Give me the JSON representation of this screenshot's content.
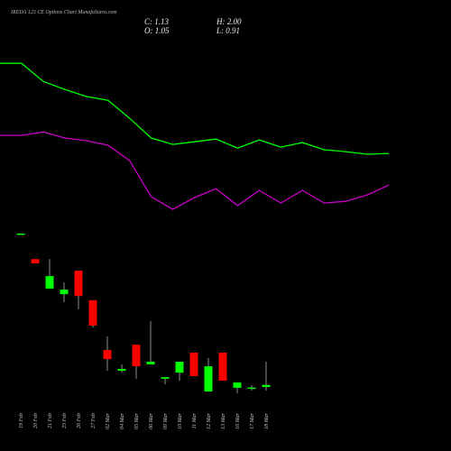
{
  "chart_data": [
    {
      "type": "candlestick",
      "title": "IREDA 123 CE Options Chart MunafaSutra.com",
      "ohlc_labels": [
        "C: 1.13",
        "H: 2.00",
        "O: 1.05",
        "L: 0.91"
      ],
      "categories": [
        "19 Feb",
        "20 Feb",
        "21 Feb",
        "25 Feb",
        "26 Feb",
        "27 Feb",
        "02 Mar",
        "04 Mar",
        "05 Mar",
        "06 Mar",
        "09 Mar",
        "10 Mar",
        "11 Mar",
        "12 Mar",
        "13 Mar",
        "16 Mar",
        "17 Mar",
        "18 Mar"
      ],
      "open": [
        6.8,
        5.86,
        4.75,
        4.54,
        5.42,
        4.31,
        2.44,
        1.66,
        2.64,
        1.9,
        1.36,
        1.59,
        2.34,
        0.88,
        2.34,
        1.02,
        1.02,
        1.05
      ],
      "high": [
        6.82,
        5.86,
        5.86,
        4.98,
        5.42,
        4.31,
        2.95,
        1.9,
        2.64,
        3.53,
        1.42,
        2.0,
        2.34,
        2.14,
        2.34,
        1.22,
        1.12,
        2.0
      ],
      "low": [
        6.8,
        5.7,
        4.75,
        4.24,
        3.97,
        3.29,
        1.66,
        1.59,
        1.36,
        1.9,
        1.15,
        1.29,
        1.46,
        0.88,
        1.29,
        0.81,
        0.92,
        0.91
      ],
      "close": [
        6.82,
        5.7,
        5.22,
        4.71,
        4.47,
        3.36,
        2.1,
        1.73,
        1.83,
        2.0,
        1.42,
        2.0,
        1.46,
        1.83,
        1.29,
        1.22,
        1.03,
        1.13
      ],
      "up_color": "#00ff00",
      "down_color": "#ff0000",
      "ylim": [
        0,
        15.6
      ]
    },
    {
      "type": "line",
      "series": [
        {
          "color": "#00ff00",
          "values": [
            13.22,
            13.22,
            12.54,
            12.24,
            11.97,
            11.83,
            11.15,
            10.41,
            10.17,
            10.27,
            10.37,
            10.03,
            10.34,
            10.07,
            10.24,
            9.97,
            9.9,
            9.8,
            9.83
          ]
        },
        {
          "color": "#c800c8",
          "values": [
            10.51,
            10.51,
            10.64,
            10.41,
            10.31,
            10.14,
            9.56,
            8.2,
            7.73,
            8.17,
            8.51,
            7.87,
            8.44,
            7.97,
            8.44,
            7.97,
            8.03,
            8.27,
            8.64
          ]
        }
      ],
      "ylim": [
        0,
        15.6
      ]
    }
  ]
}
